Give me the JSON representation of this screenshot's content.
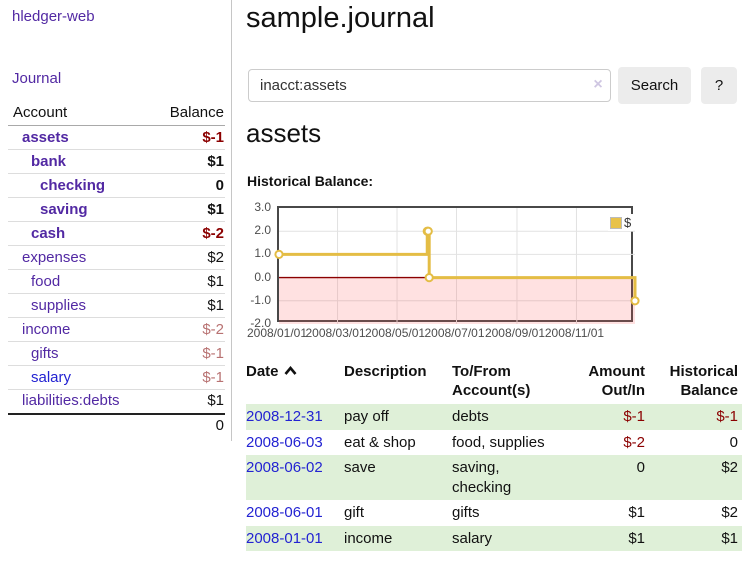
{
  "app": {
    "title": "hledger-web"
  },
  "sidebar": {
    "journal_link": "Journal",
    "accounts_table": {
      "account_header": "Account",
      "balance_header": "Balance",
      "rows": [
        {
          "name": "assets",
          "depth": 1,
          "bold": true,
          "balance": "$-1"
        },
        {
          "name": "bank",
          "depth": 2,
          "bold": true,
          "balance": "$1"
        },
        {
          "name": "checking",
          "depth": 3,
          "bold": true,
          "balance": "0"
        },
        {
          "name": "saving",
          "depth": 3,
          "bold": true,
          "balance": "$1"
        },
        {
          "name": "cash",
          "depth": 2,
          "bold": true,
          "balance": "$-2"
        },
        {
          "name": "expenses",
          "depth": 1,
          "bold": false,
          "balance": "$2"
        },
        {
          "name": "food",
          "depth": 2,
          "bold": false,
          "balance": "$1"
        },
        {
          "name": "supplies",
          "depth": 2,
          "bold": false,
          "balance": "$1"
        },
        {
          "name": "income",
          "depth": 1,
          "bold": false,
          "balance": "$-2"
        },
        {
          "name": "gifts",
          "depth": 2,
          "bold": false,
          "balance": "$-1"
        },
        {
          "name": "salary",
          "depth": 2,
          "bold": false,
          "balance": "$-1",
          "blue": true
        },
        {
          "name": "liabilities:debts",
          "depth": 1,
          "bold": false,
          "balance": "$1"
        }
      ],
      "total": "0"
    }
  },
  "header": {
    "title": "sample.journal"
  },
  "search": {
    "value": "inacct:assets",
    "clear_icon": "×",
    "button_label": "Search",
    "help_label": "?"
  },
  "account_page": {
    "heading": "assets",
    "chart_label": "Historical Balance:"
  },
  "chart_data": {
    "type": "line",
    "step": true,
    "title": "Historical Balance",
    "x_range": [
      "2008-01-01",
      "2008-12-31"
    ],
    "y_range": [
      -2,
      3
    ],
    "y_ticks": [
      {
        "value": 3,
        "label": "3.0"
      },
      {
        "value": 2,
        "label": "2.0"
      },
      {
        "value": 1,
        "label": "1.0"
      },
      {
        "value": 0,
        "label": "0.0"
      },
      {
        "value": -1,
        "label": "-1.0"
      },
      {
        "value": -2,
        "label": "-2.0"
      }
    ],
    "x_ticks": [
      {
        "date": "2008-01-01",
        "label": "2008/01/01"
      },
      {
        "date": "2008-03-01",
        "label": "2008/03/01"
      },
      {
        "date": "2008-05-01",
        "label": "2008/05/01"
      },
      {
        "date": "2008-07-01",
        "label": "2008/07/01"
      },
      {
        "date": "2008-09-01",
        "label": "2008/09/01"
      },
      {
        "date": "2008-11-01",
        "label": "2008/11/01"
      }
    ],
    "series": [
      {
        "name": "$",
        "color": "#e4bd45",
        "points": [
          [
            "2008-01-01",
            1
          ],
          [
            "2008-06-01",
            2
          ],
          [
            "2008-06-02",
            2
          ],
          [
            "2008-06-03",
            0
          ],
          [
            "2008-12-31",
            -1
          ]
        ]
      }
    ],
    "legend": {
      "label": "$",
      "position": "top-right"
    },
    "grid": true,
    "negative_region_color": "rgba(255,90,90,0.18)",
    "zero_line_color": "#8b0000"
  },
  "register": {
    "headers": {
      "date": "Date",
      "description": "Description",
      "accounts": "To/From Account(s)",
      "amount": "Amount Out/In",
      "balance": "Historical Balance"
    },
    "rows": [
      {
        "date": "2008-12-31",
        "description": "pay off",
        "accounts": "debts",
        "amount": "$-1",
        "balance": "$-1"
      },
      {
        "date": "2008-06-03",
        "description": "eat & shop",
        "accounts": "food, supplies",
        "amount": "$-2",
        "balance": "0"
      },
      {
        "date": "2008-06-02",
        "description": "save",
        "accounts": "saving, checking",
        "amount": "0",
        "balance": "$2"
      },
      {
        "date": "2008-06-01",
        "description": "gift",
        "accounts": "gifts",
        "amount": "$1",
        "balance": "$2"
      },
      {
        "date": "2008-01-01",
        "description": "income",
        "accounts": "salary",
        "amount": "$1",
        "balance": "$1"
      }
    ]
  }
}
